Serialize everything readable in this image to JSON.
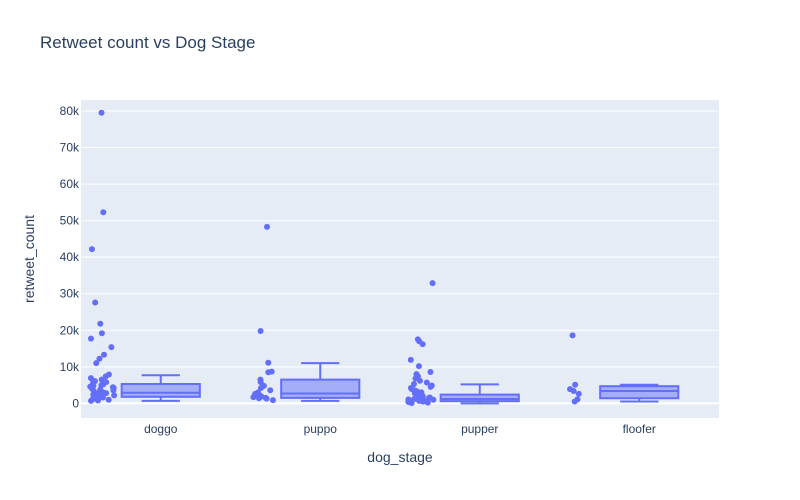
{
  "chart_data": {
    "type": "box",
    "title": "Retweet count vs Dog Stage",
    "xlabel": "dog_stage",
    "ylabel": "retweet_count",
    "ylim": [
      -4000,
      83000
    ],
    "yticks": [
      {
        "value": 0,
        "label": "0"
      },
      {
        "value": 10000,
        "label": "10k"
      },
      {
        "value": 20000,
        "label": "20k"
      },
      {
        "value": 30000,
        "label": "30k"
      },
      {
        "value": 40000,
        "label": "40k"
      },
      {
        "value": 50000,
        "label": "50k"
      },
      {
        "value": 60000,
        "label": "60k"
      },
      {
        "value": 70000,
        "label": "70k"
      },
      {
        "value": 80000,
        "label": "80k"
      }
    ],
    "categories": [
      "doggo",
      "puppo",
      "pupper",
      "floofer"
    ],
    "boxes": [
      {
        "category": "doggo",
        "lowerfence": 700,
        "q1": 1800,
        "median": 2900,
        "q3": 5300,
        "upperfence": 7700,
        "points": [
          79500,
          52300,
          42200,
          27600,
          21800,
          19200,
          17700,
          15400,
          13300,
          12200,
          11000,
          7900,
          7400,
          6900,
          6500,
          6100,
          5800,
          5500,
          5200,
          5000,
          4800,
          4600,
          4400,
          4200,
          4000,
          3800,
          3600,
          3400,
          3200,
          3000,
          2800,
          2600,
          2400,
          2200,
          2000,
          1800,
          1600,
          1400,
          1200,
          1000,
          900,
          800,
          700
        ]
      },
      {
        "category": "puppo",
        "lowerfence": 700,
        "q1": 1500,
        "median": 2700,
        "q3": 6500,
        "upperfence": 11000,
        "points": [
          48300,
          19800,
          11100,
          8700,
          8500,
          6500,
          5800,
          4800,
          4200,
          3600,
          3000,
          2600,
          2200,
          1900,
          1700,
          1500,
          1400,
          1300,
          900
        ]
      },
      {
        "category": "pupper",
        "lowerfence": 0,
        "q1": 600,
        "median": 1200,
        "q3": 2400,
        "upperfence": 5200,
        "points": [
          32900,
          17500,
          17000,
          16200,
          11900,
          10200,
          8600,
          8000,
          7400,
          6800,
          6200,
          5700,
          5300,
          4900,
          4500,
          4200,
          3900,
          3600,
          3300,
          3000,
          2800,
          2600,
          2400,
          2200,
          2000,
          1800,
          1600,
          1500,
          1400,
          1300,
          1200,
          1100,
          1000,
          900,
          800,
          700,
          600,
          500,
          400,
          300,
          200,
          100
        ]
      },
      {
        "category": "floofer",
        "lowerfence": 500,
        "q1": 1400,
        "median": 3400,
        "q3": 4700,
        "upperfence": 5100,
        "points": [
          18600,
          5100,
          3900,
          3400,
          2600,
          1100,
          500
        ]
      }
    ],
    "colors": {
      "box": "#636efa",
      "fill": "rgba(99,110,250,0.5)",
      "plot_bg": "#e5ecf6",
      "grid": "#ffffff",
      "text": "#2a3f5f"
    },
    "grid": true,
    "legend": "none"
  }
}
